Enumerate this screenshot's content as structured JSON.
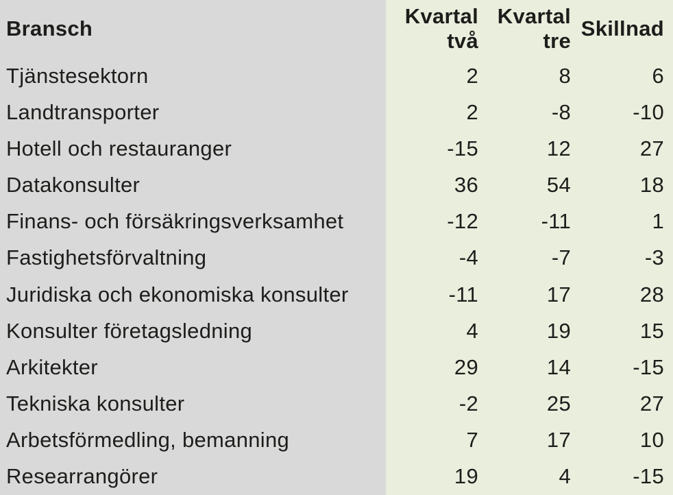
{
  "table": {
    "header": {
      "bransch": "Bransch",
      "kvartal_tva": "Kvartal två",
      "kvartal_tre": "Kvartal tre",
      "skillnad": "Skillnad"
    },
    "rows": [
      {
        "name": "Tjänstesektorn",
        "q2": 2,
        "q3": 8,
        "diff": 6
      },
      {
        "name": "Landtransporter",
        "q2": 2,
        "q3": -8,
        "diff": -10
      },
      {
        "name": "Hotell och restauranger",
        "q2": -15,
        "q3": 12,
        "diff": 27
      },
      {
        "name": "Datakonsulter",
        "q2": 36,
        "q3": 54,
        "diff": 18
      },
      {
        "name": "Finans- och försäkringsverksamhet",
        "q2": -12,
        "q3": -11,
        "diff": 1
      },
      {
        "name": "Fastighetsförvaltning",
        "q2": -4,
        "q3": -7,
        "diff": -3
      },
      {
        "name": "Juridiska och ekonomiska konsulter",
        "q2": -11,
        "q3": 17,
        "diff": 28
      },
      {
        "name": "Konsulter företagsledning",
        "q2": 4,
        "q3": 19,
        "diff": 15
      },
      {
        "name": "Arkitekter",
        "q2": 29,
        "q3": 14,
        "diff": -15
      },
      {
        "name": "Tekniska konsulter",
        "q2": -2,
        "q3": 25,
        "diff": 27
      },
      {
        "name": "Arbetsförmedling, bemanning",
        "q2": 7,
        "q3": 17,
        "diff": 10
      },
      {
        "name": "Researrangörer",
        "q2": 19,
        "q3": 4,
        "diff": -15
      }
    ]
  },
  "colors": {
    "label_column_bg": "#d9d9d9",
    "value_column_bg": "#eaeedd",
    "text": "#1d1d1b"
  },
  "chart_data": {
    "type": "table",
    "columns": [
      "Bransch",
      "Kvartal två",
      "Kvartal tre",
      "Skillnad"
    ],
    "rows": [
      [
        "Tjänstesektorn",
        2,
        8,
        6
      ],
      [
        "Landtransporter",
        2,
        -8,
        -10
      ],
      [
        "Hotell och restauranger",
        -15,
        12,
        27
      ],
      [
        "Datakonsulter",
        36,
        54,
        18
      ],
      [
        "Finans- och försäkringsverksamhet",
        -12,
        -11,
        1
      ],
      [
        "Fastighetsförvaltning",
        -4,
        -7,
        -3
      ],
      [
        "Juridiska och ekonomiska konsulter",
        -11,
        17,
        28
      ],
      [
        "Konsulter företagsledning",
        4,
        19,
        15
      ],
      [
        "Arkitekter",
        29,
        14,
        -15
      ],
      [
        "Tekniska konsulter",
        -2,
        25,
        27
      ],
      [
        "Arbetsförmedling, bemanning",
        7,
        17,
        10
      ],
      [
        "Researrangörer",
        19,
        4,
        -15
      ]
    ]
  }
}
